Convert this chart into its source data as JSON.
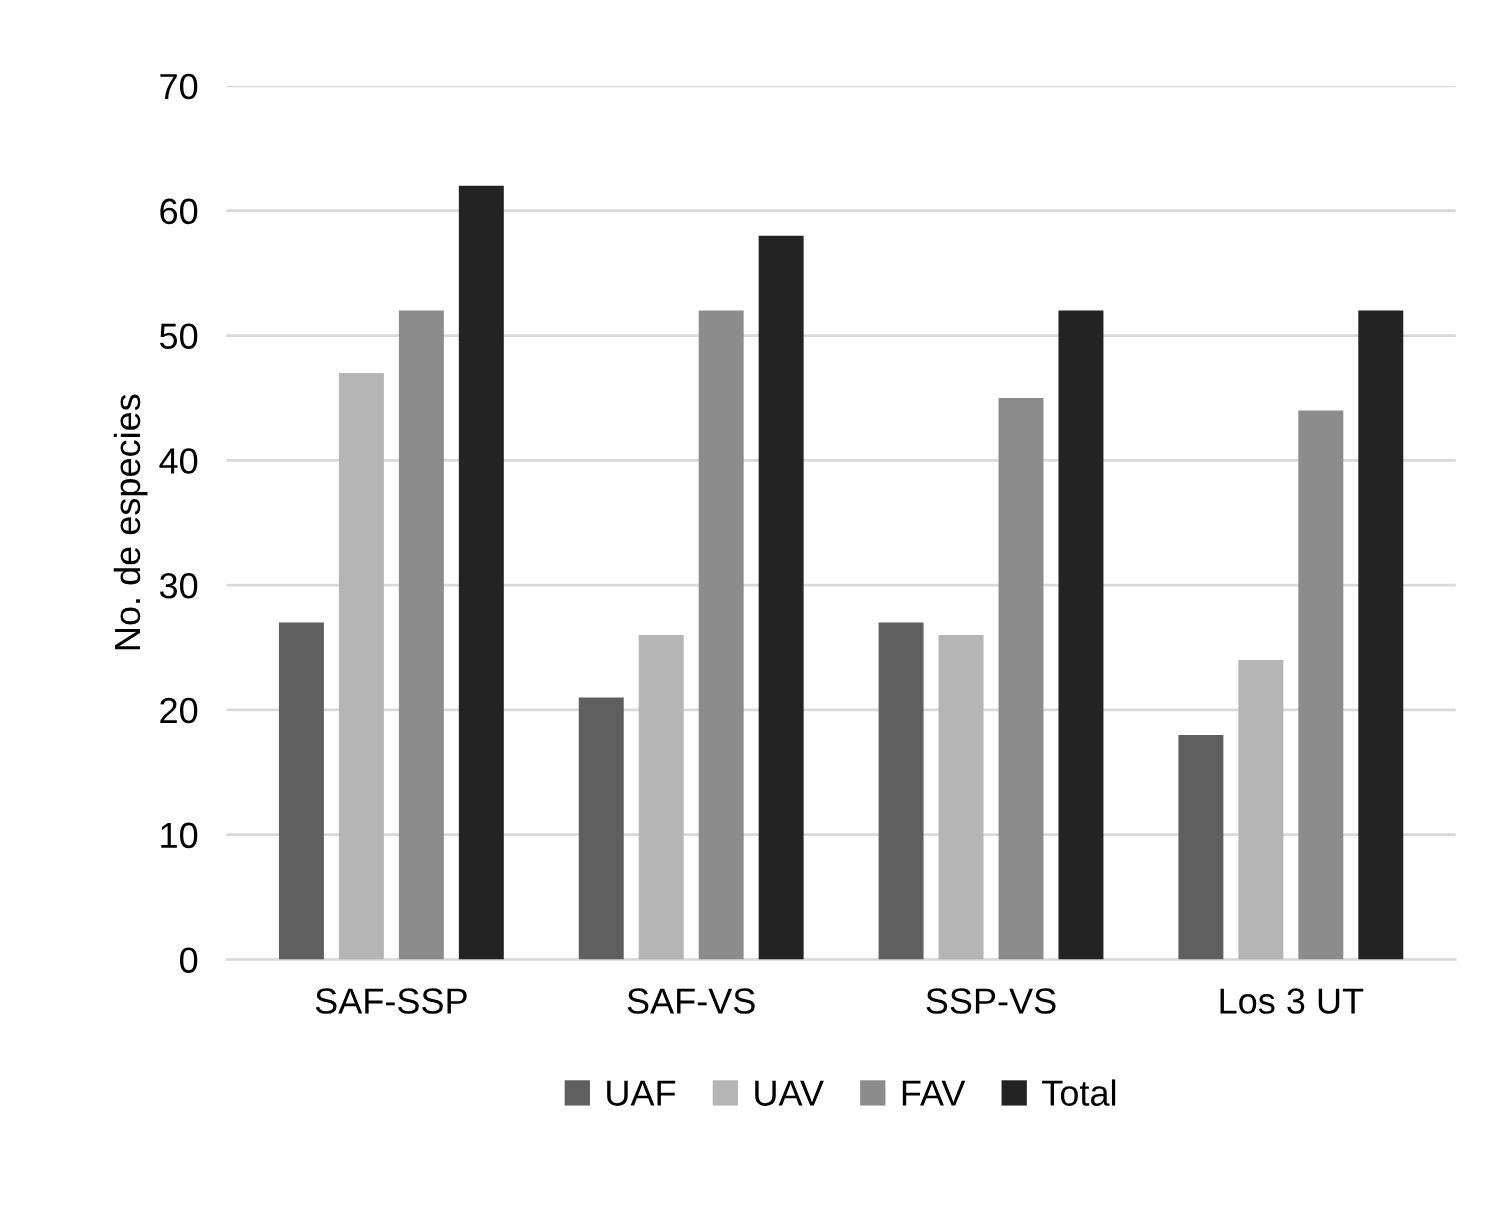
{
  "chart_data": {
    "type": "bar",
    "ylabel": "No. de especies",
    "categories": [
      "SAF-SSP",
      "SAF-VS",
      "SSP-VS",
      "Los 3 UT"
    ],
    "series": [
      {
        "name": "UAF",
        "color": "#5f5f5f",
        "values": [
          27,
          21,
          27,
          18
        ]
      },
      {
        "name": "UAV",
        "color": "#b5b5b5",
        "values": [
          47,
          26,
          26,
          24
        ]
      },
      {
        "name": "FAV",
        "color": "#8c8c8c",
        "values": [
          52,
          52,
          45,
          44
        ]
      },
      {
        "name": "Total",
        "color": "#232323",
        "values": [
          62,
          58,
          52,
          52
        ]
      }
    ],
    "ylim": [
      0,
      70
    ],
    "yticks": [
      0,
      10,
      20,
      30,
      40,
      50,
      60,
      70
    ],
    "grid": "y",
    "legend": "bottom"
  }
}
